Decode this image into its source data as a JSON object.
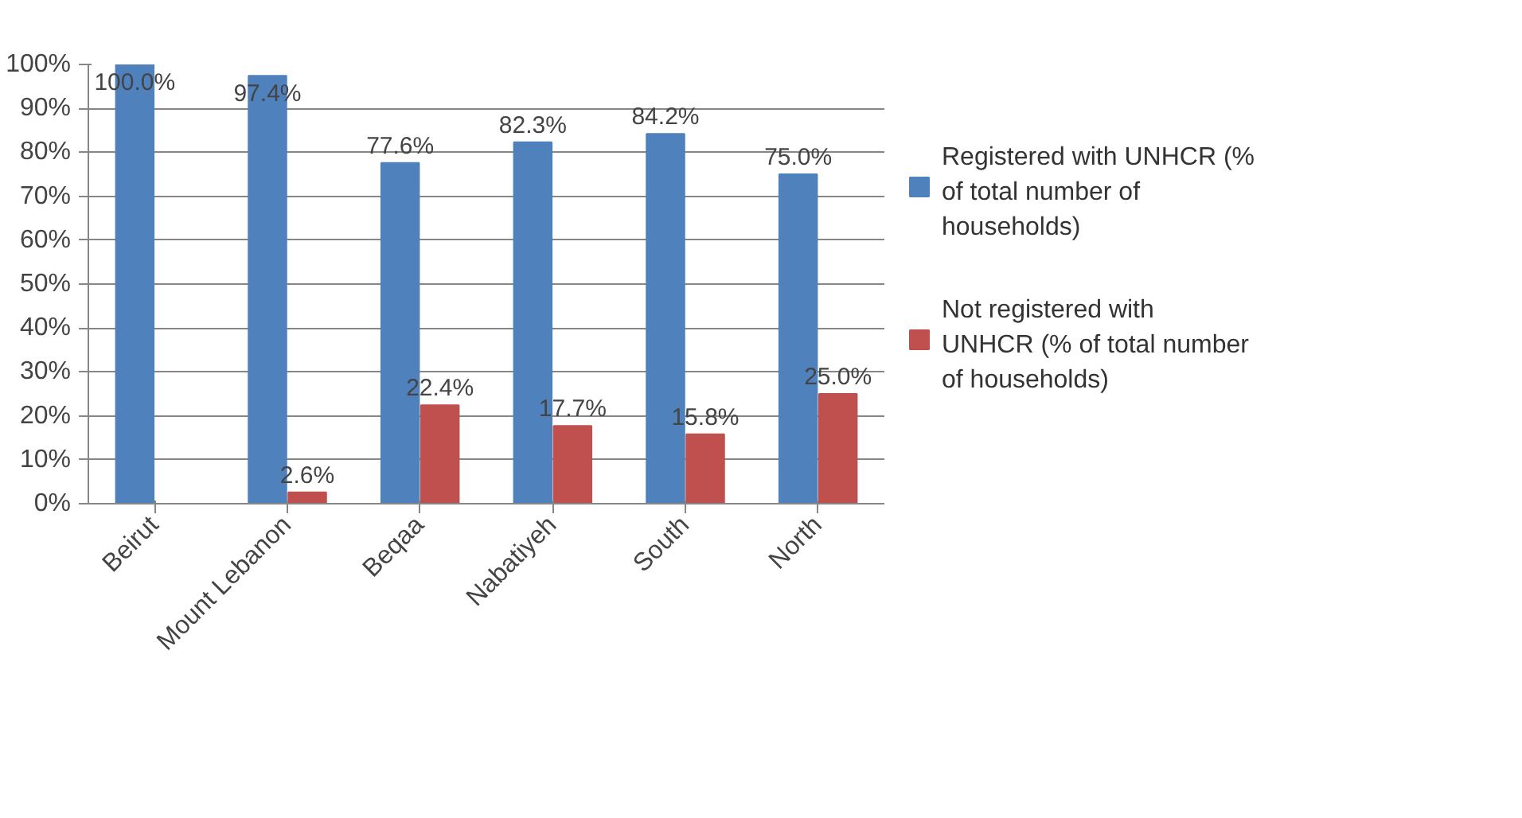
{
  "chart_data": {
    "type": "bar",
    "categories": [
      "Beirut",
      "Mount Lebanon",
      "Beqaa",
      "Nabatiyeh",
      "South",
      "North"
    ],
    "series": [
      {
        "name": "Registered with UNHCR (% of total number of households)",
        "color": "#4f81bd",
        "values": [
          100.0,
          97.4,
          77.6,
          82.3,
          84.2,
          75.0
        ],
        "value_labels": [
          "100.0%",
          "97.4%",
          "77.6%",
          "82.3%",
          "84.2%",
          "75.0%"
        ]
      },
      {
        "name": "Not registered with UNHCR (% of total number of households)",
        "color": "#c0504d",
        "values": [
          0,
          2.6,
          22.4,
          17.7,
          15.8,
          25.0
        ],
        "value_labels": [
          null,
          "2.6%",
          "22.4%",
          "17.7%",
          "15.8%",
          "25.0%"
        ]
      }
    ],
    "ylim": [
      0,
      100
    ],
    "yticks": [
      {
        "value": 0,
        "label": "0%"
      },
      {
        "value": 10,
        "label": "10%"
      },
      {
        "value": 20,
        "label": "20%"
      },
      {
        "value": 30,
        "label": "30%"
      },
      {
        "value": 40,
        "label": "40%"
      },
      {
        "value": 50,
        "label": "50%"
      },
      {
        "value": 60,
        "label": "60%"
      },
      {
        "value": 70,
        "label": "70%"
      },
      {
        "value": 80,
        "label": "80%"
      },
      {
        "value": 90,
        "label": "90%"
      },
      {
        "value": 100,
        "label": "100%"
      }
    ],
    "grid": "y",
    "legend": "right"
  }
}
